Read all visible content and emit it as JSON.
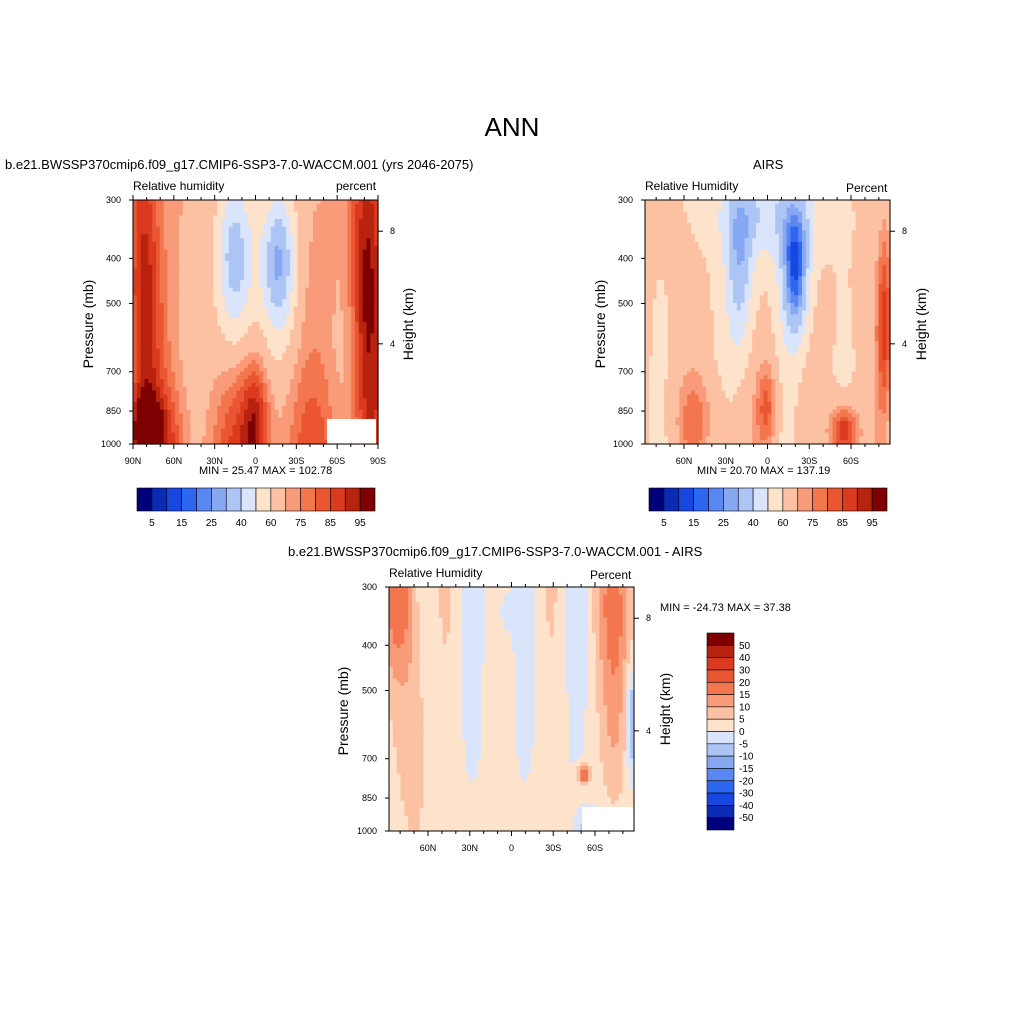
{
  "title": "ANN",
  "chart_data": [
    {
      "type": "heatmap",
      "title": "b.e21.BWSSP370cmip6.f09_g17.CMIP6-SSP3-7.0-WACCM.001 (yrs 2046-2075)",
      "left_label": "Relative humidity",
      "right_label": "percent",
      "ylabel": "Pressure (mb)",
      "y2label": "Height (km)",
      "x_ticks": [
        "90N",
        "60N",
        "30N",
        "0",
        "30S",
        "60S",
        "90S"
      ],
      "y_ticks": [
        "300",
        "400",
        "500",
        "700",
        "850",
        "1000"
      ],
      "y2_ticks": [
        "8",
        "4"
      ],
      "min": 25.47,
      "max": 102.78,
      "stats": "MIN =  25.47  MAX = 102.78",
      "colorbar_labels": [
        "5",
        "15",
        "25",
        "40",
        "60",
        "75",
        "85",
        "95"
      ],
      "colors": [
        "#00007f",
        "#0a2bb4",
        "#1846e0",
        "#2d66f0",
        "#5a87f2",
        "#86a8f2",
        "#adc5f5",
        "#dae5fb",
        "#fde3cc",
        "#fbc1a2",
        "#f99a79",
        "#f3764f",
        "#ea5532",
        "#dc3a1e",
        "#b8230f",
        "#7f0000"
      ]
    },
    {
      "type": "heatmap",
      "title": "AIRS",
      "left_label": "Relative Humidity",
      "right_label": "Percent",
      "ylabel": "Pressure (mb)",
      "y2label": "Height (km)",
      "x_ticks": [
        "60N",
        "30N",
        "0",
        "30S",
        "60S"
      ],
      "y_ticks": [
        "300",
        "400",
        "500",
        "700",
        "850",
        "1000"
      ],
      "y2_ticks": [
        "8",
        "4"
      ],
      "min": 20.7,
      "max": 137.19,
      "stats": "MIN =  20.70  MAX = 137.19",
      "colorbar_labels": [
        "5",
        "15",
        "25",
        "40",
        "60",
        "75",
        "85",
        "95"
      ],
      "colors": [
        "#00007f",
        "#0a2bb4",
        "#1846e0",
        "#2d66f0",
        "#5a87f2",
        "#86a8f2",
        "#adc5f5",
        "#dae5fb",
        "#fde3cc",
        "#fbc1a2",
        "#f99a79",
        "#f3764f",
        "#ea5532",
        "#dc3a1e",
        "#b8230f",
        "#7f0000"
      ]
    },
    {
      "type": "heatmap",
      "title": "b.e21.BWSSP370cmip6.f09_g17.CMIP6-SSP3-7.0-WACCM.001 - AIRS",
      "left_label": "Relative Humidity",
      "right_label": "Percent",
      "ylabel": "Pressure (mb)",
      "y2label": "Height (km)",
      "x_ticks": [
        "60N",
        "30N",
        "0",
        "30S",
        "60S"
      ],
      "y_ticks": [
        "300",
        "400",
        "500",
        "700",
        "850",
        "1000"
      ],
      "y2_ticks": [
        "8",
        "4"
      ],
      "min": -24.73,
      "max": 37.38,
      "stats": "MIN = -24.73  MAX =  37.38",
      "colorbar_labels": [
        "50",
        "40",
        "30",
        "20",
        "15",
        "10",
        "5",
        "0",
        "-5",
        "-10",
        "-15",
        "-20",
        "-30",
        "-40",
        "-50"
      ],
      "colors": [
        "#7f0000",
        "#b8230f",
        "#dc3a1e",
        "#ea5532",
        "#f3764f",
        "#f99a79",
        "#fbc1a2",
        "#fde3cc",
        "#dae5fb",
        "#adc5f5",
        "#86a8f2",
        "#5a87f2",
        "#2d66f0",
        "#1846e0",
        "#0a2bb4",
        "#00007f"
      ]
    }
  ]
}
